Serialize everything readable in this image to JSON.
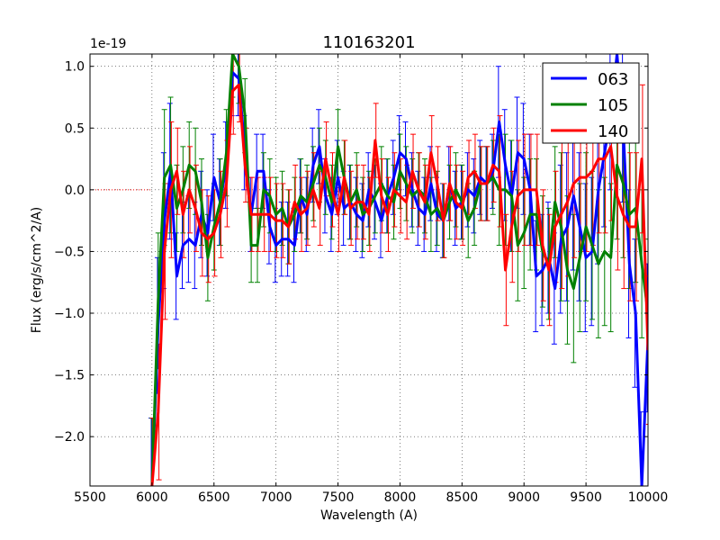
{
  "chart_data": {
    "type": "line",
    "title": "110163201",
    "xlabel": "Wavelength (A)",
    "ylabel": "Flux (erg/s/cm^2/A)",
    "y_offset_label": "1e-19",
    "xlim": [
      5500,
      10000
    ],
    "ylim": [
      -2.4,
      1.1
    ],
    "x_ticks": [
      5500,
      6000,
      6500,
      7000,
      7500,
      8000,
      8500,
      9000,
      9500,
      10000
    ],
    "y_ticks": [
      -2.0,
      -1.5,
      -1.0,
      -0.5,
      0.0,
      0.5,
      1.0
    ],
    "grid": true,
    "legend_position": "top-right",
    "x": [
      6000,
      6050,
      6100,
      6150,
      6200,
      6250,
      6300,
      6350,
      6400,
      6450,
      6500,
      6550,
      6600,
      6650,
      6700,
      6750,
      6800,
      6850,
      6900,
      6950,
      7000,
      7050,
      7100,
      7150,
      7200,
      7250,
      7300,
      7350,
      7400,
      7450,
      7500,
      7550,
      7600,
      7650,
      7700,
      7750,
      7800,
      7850,
      7900,
      7950,
      8000,
      8050,
      8100,
      8150,
      8200,
      8250,
      8300,
      8350,
      8400,
      8450,
      8500,
      8550,
      8600,
      8650,
      8700,
      8750,
      8800,
      8850,
      8900,
      8950,
      9000,
      9050,
      9100,
      9150,
      9200,
      9250,
      9300,
      9350,
      9400,
      9450,
      9500,
      9550,
      9600,
      9650,
      9700,
      9750,
      9800,
      9850,
      9900,
      9950,
      10000
    ],
    "series": [
      {
        "name": "063",
        "color": "#0000ff",
        "values": [
          -2.4,
          -1.1,
          -0.25,
          0.15,
          -0.7,
          -0.45,
          -0.4,
          -0.45,
          -0.2,
          -0.35,
          0.1,
          -0.1,
          0.2,
          0.95,
          0.9,
          0.3,
          -0.2,
          0.15,
          0.15,
          -0.3,
          -0.45,
          -0.4,
          -0.4,
          -0.45,
          -0.05,
          -0.2,
          0.2,
          0.35,
          -0.05,
          -0.2,
          0.1,
          -0.15,
          -0.1,
          -0.2,
          -0.25,
          0.0,
          -0.1,
          -0.25,
          -0.05,
          0.1,
          0.3,
          0.25,
          0.0,
          -0.15,
          -0.2,
          0.05,
          -0.2,
          -0.25,
          0.05,
          -0.15,
          -0.1,
          0.0,
          -0.05,
          0.1,
          0.05,
          0.15,
          0.55,
          0.2,
          -0.05,
          0.3,
          0.25,
          0.0,
          -0.7,
          -0.65,
          -0.55,
          -0.8,
          -0.4,
          -0.3,
          -0.05,
          -0.3,
          -0.55,
          -0.5,
          0.0,
          0.3,
          0.6,
          1.1,
          0.5,
          -0.6,
          -1.0,
          -2.4,
          -1.2
        ]
      },
      {
        "name": "105",
        "color": "#008000",
        "values": [
          -2.4,
          -0.9,
          0.1,
          0.2,
          -0.15,
          0.0,
          0.2,
          0.15,
          -0.1,
          -0.55,
          -0.3,
          -0.1,
          0.3,
          1.1,
          1.0,
          0.6,
          -0.45,
          -0.45,
          0.0,
          -0.05,
          -0.2,
          -0.15,
          -0.3,
          -0.2,
          -0.05,
          -0.1,
          0.05,
          0.2,
          0.1,
          -0.1,
          0.35,
          0.1,
          -0.1,
          0.0,
          -0.2,
          -0.15,
          -0.05,
          0.05,
          -0.05,
          -0.1,
          0.15,
          0.05,
          -0.05,
          0.0,
          -0.05,
          -0.2,
          -0.15,
          -0.25,
          -0.1,
          0.0,
          -0.1,
          -0.25,
          -0.15,
          0.05,
          0.05,
          0.1,
          0.0,
          0.0,
          -0.05,
          -0.45,
          -0.35,
          -0.2,
          -0.2,
          -0.5,
          -0.6,
          -0.1,
          -0.3,
          -0.65,
          -0.8,
          -0.55,
          -0.3,
          -0.45,
          -0.6,
          -0.5,
          -0.55,
          0.2,
          0.05,
          -0.2,
          -0.15,
          -0.6,
          -1.0
        ]
      },
      {
        "name": "140",
        "color": "#ff0000",
        "values": [
          -2.4,
          -1.8,
          -0.5,
          0.0,
          0.15,
          -0.2,
          0.0,
          -0.15,
          -0.35,
          -0.4,
          -0.35,
          -0.2,
          0.05,
          0.8,
          0.85,
          0.2,
          -0.2,
          -0.2,
          -0.2,
          -0.2,
          -0.25,
          -0.25,
          -0.3,
          -0.1,
          -0.2,
          -0.15,
          0.0,
          -0.15,
          0.25,
          0.0,
          -0.2,
          0.1,
          -0.15,
          -0.1,
          -0.1,
          -0.2,
          0.4,
          -0.05,
          -0.2,
          0.0,
          -0.05,
          -0.1,
          0.15,
          0.0,
          -0.1,
          0.3,
          0.05,
          -0.25,
          0.05,
          -0.1,
          -0.15,
          0.1,
          0.15,
          0.05,
          0.05,
          0.2,
          0.15,
          -0.65,
          -0.3,
          -0.05,
          0.0,
          0.0,
          0.0,
          -0.45,
          -0.65,
          -0.3,
          -0.2,
          -0.1,
          0.05,
          0.1,
          0.1,
          0.15,
          0.25,
          0.25,
          0.35,
          -0.05,
          -0.2,
          -0.3,
          -0.3,
          0.25,
          -1.3
        ]
      }
    ]
  }
}
